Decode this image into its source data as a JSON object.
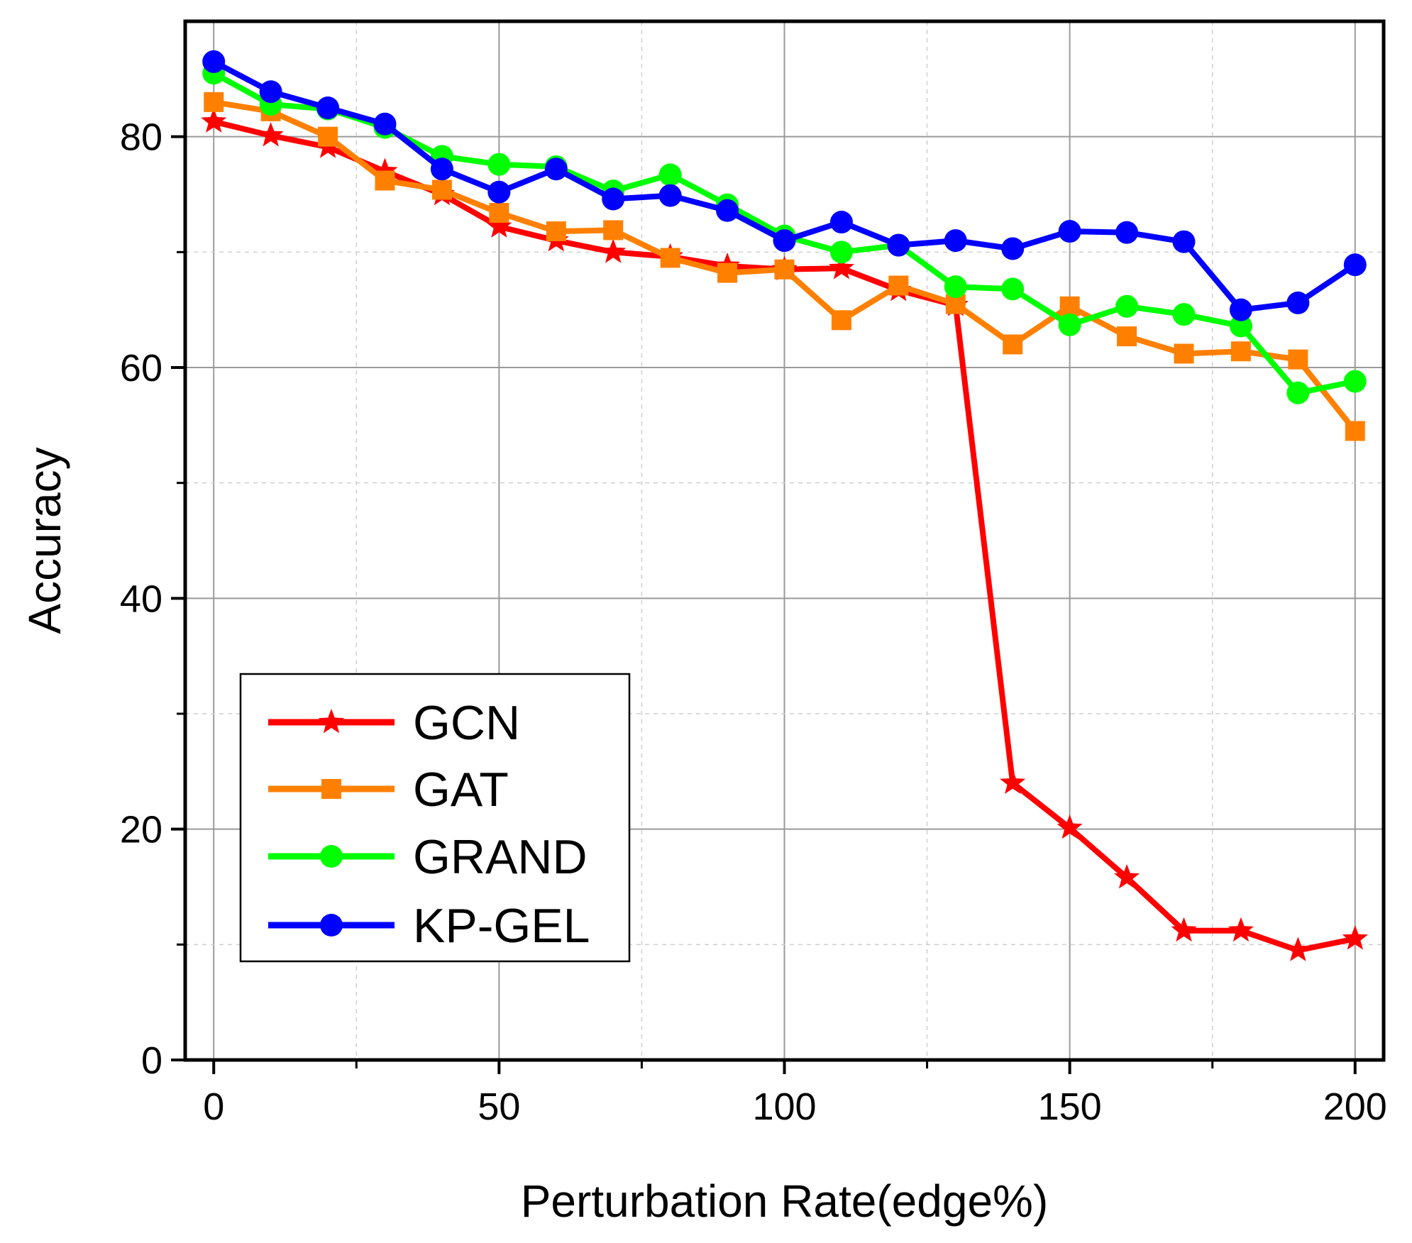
{
  "chart_data": {
    "type": "line",
    "title": "",
    "xlabel": "Perturbation Rate(edge%)",
    "ylabel": "Accuracy",
    "xlim": [
      -5,
      205
    ],
    "ylim": [
      0,
      90
    ],
    "xticks": [
      0,
      50,
      100,
      150,
      200
    ],
    "yticks": [
      0,
      20,
      40,
      60,
      80
    ],
    "xtick_labels": [
      "0",
      "50",
      "100",
      "150",
      "200"
    ],
    "ytick_labels": [
      "0",
      "20",
      "40",
      "60",
      "80"
    ],
    "minor_xticks": [
      25,
      75,
      125,
      175
    ],
    "minor_yticks": [
      10,
      30,
      50,
      70
    ],
    "grid": true,
    "legend_position": "bottom-left",
    "x": [
      0,
      10,
      20,
      30,
      40,
      50,
      60,
      70,
      80,
      90,
      100,
      110,
      120,
      130,
      140,
      150,
      160,
      170,
      180,
      190,
      200
    ],
    "series": [
      {
        "name": "GCN",
        "color": "#ff0000",
        "marker": "star",
        "values": [
          81.3,
          80.1,
          79.1,
          77.0,
          75.0,
          72.2,
          71.0,
          70.0,
          69.6,
          68.8,
          68.5,
          68.6,
          66.7,
          65.4,
          24.0,
          20.1,
          15.8,
          11.2,
          11.2,
          9.5,
          10.5
        ]
      },
      {
        "name": "GAT",
        "color": "#ff8000",
        "marker": "square",
        "values": [
          83.0,
          82.2,
          80.0,
          76.2,
          75.4,
          73.4,
          71.8,
          71.9,
          69.5,
          68.2,
          68.5,
          64.1,
          67.1,
          65.5,
          62.0,
          65.3,
          62.7,
          61.2,
          61.4,
          60.7,
          54.5
        ]
      },
      {
        "name": "GRAND",
        "color": "#00ff00",
        "marker": "circle",
        "values": [
          85.5,
          82.8,
          82.4,
          80.8,
          78.3,
          77.6,
          77.4,
          75.3,
          76.7,
          74.1,
          71.4,
          70.0,
          70.6,
          67.0,
          66.8,
          63.7,
          65.3,
          64.6,
          63.6,
          57.8,
          58.8
        ]
      },
      {
        "name": "KP-GEL",
        "color": "#0000ff",
        "marker": "circle",
        "values": [
          86.5,
          83.9,
          82.5,
          81.1,
          77.2,
          75.2,
          77.2,
          74.6,
          74.9,
          73.6,
          71.0,
          72.6,
          70.6,
          71.0,
          70.3,
          71.8,
          71.7,
          70.9,
          65.0,
          65.6,
          68.9
        ]
      }
    ]
  }
}
